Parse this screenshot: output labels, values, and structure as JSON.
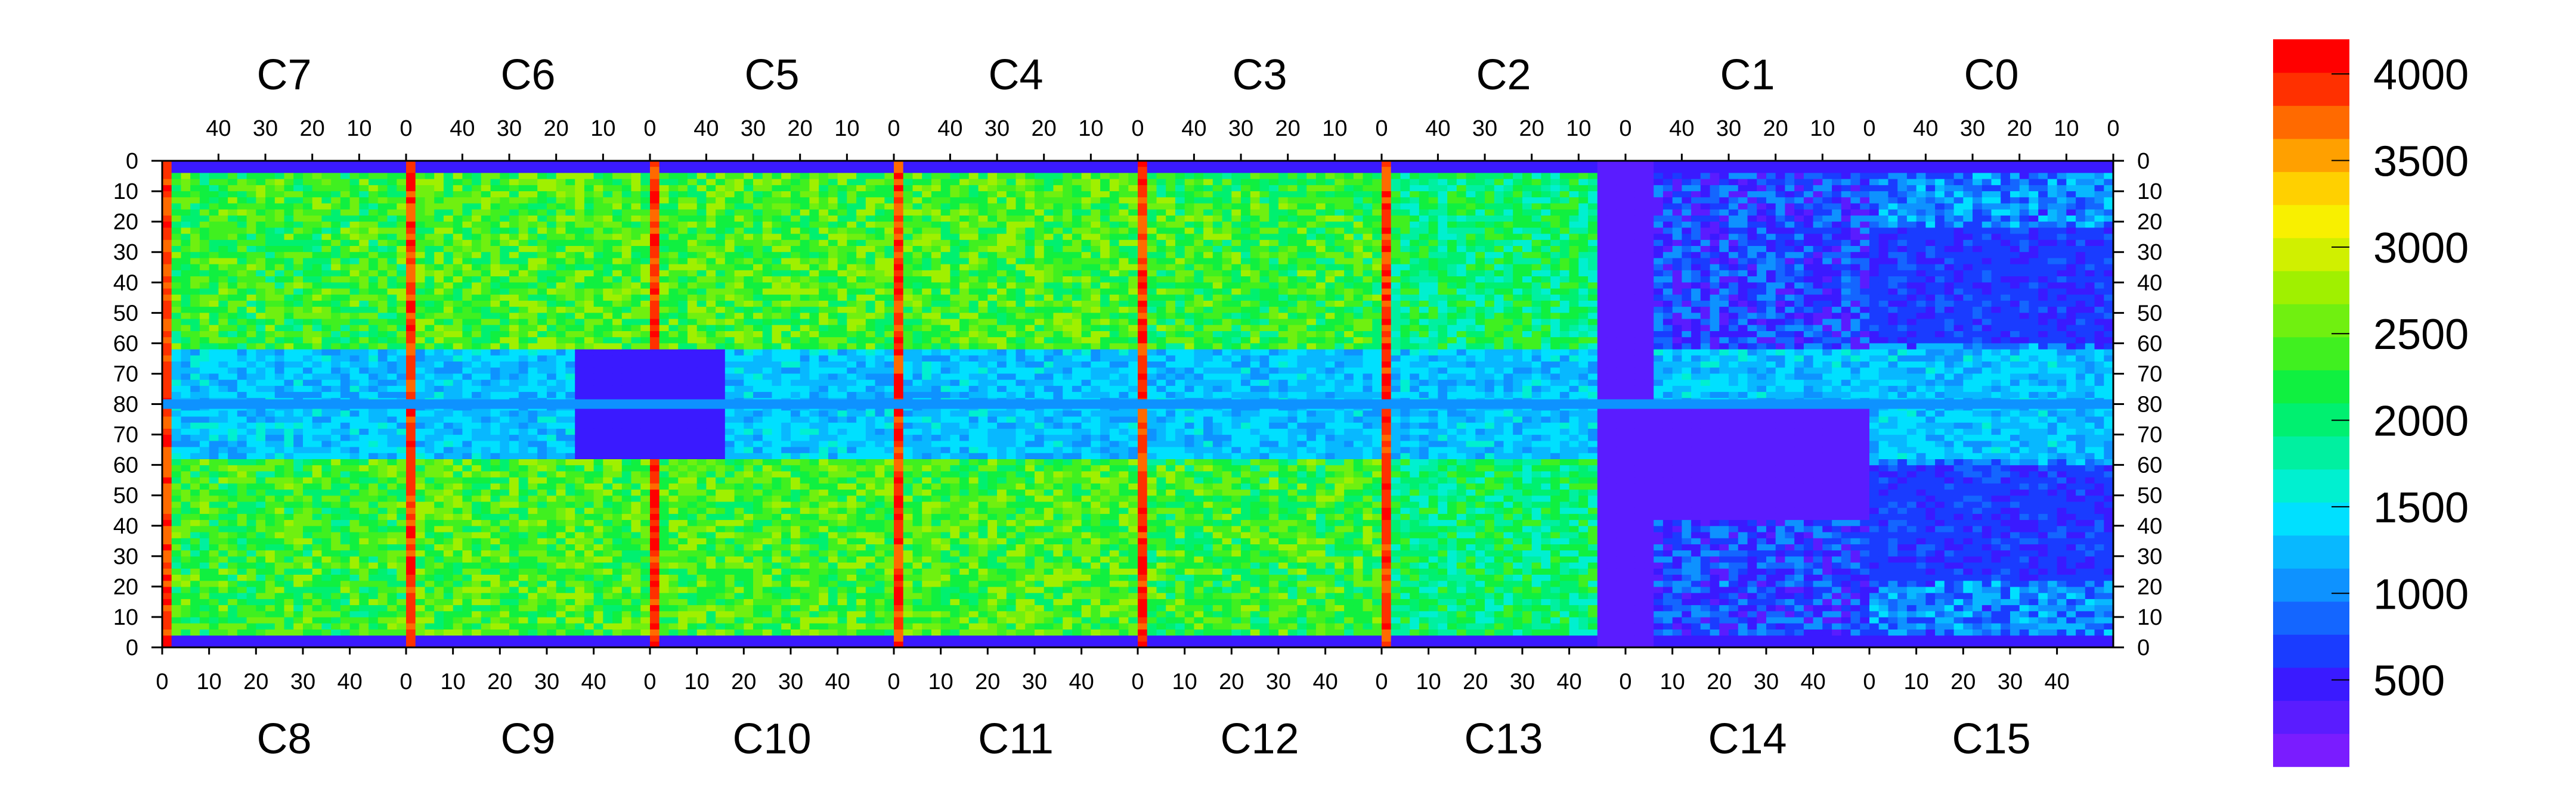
{
  "chart_data": {
    "type": "heatmap",
    "title": "",
    "xlabel": "",
    "ylabel": "",
    "chips": {
      "top": [
        "C7",
        "C6",
        "C5",
        "C4",
        "C3",
        "C2",
        "C1",
        "C0"
      ],
      "bottom": [
        "C8",
        "C9",
        "C10",
        "C11",
        "C12",
        "C13",
        "C14",
        "C15"
      ]
    },
    "x_ticks_top": [
      "40",
      "30",
      "20",
      "10",
      "0"
    ],
    "x_ticks_bottom": [
      "0",
      "10",
      "20",
      "30",
      "40"
    ],
    "y_ticks": [
      "0",
      "10",
      "20",
      "30",
      "40",
      "50",
      "60",
      "70",
      "80",
      "70",
      "60",
      "50",
      "40",
      "30",
      "20",
      "10",
      "0"
    ],
    "columns_per_chip": 52,
    "rows_per_half": 80,
    "zlim": [
      0,
      4200
    ],
    "palette": {
      "tick_values": [
        4000,
        3500,
        3000,
        2500,
        2000,
        1500,
        1000,
        500
      ],
      "tick_labels": [
        "4000",
        "3500",
        "3000",
        "2500",
        "2000",
        "1500",
        "1000",
        "500"
      ],
      "colors": [
        "#7a1cff",
        "#5a1cff",
        "#3a1aff",
        "#1a3cff",
        "#1466ff",
        "#0e92ff",
        "#08b8ff",
        "#00e0ff",
        "#00f0d0",
        "#00f0a0",
        "#00f070",
        "#10f040",
        "#40f020",
        "#70f010",
        "#a0f000",
        "#d0f000",
        "#f8f000",
        "#ffd000",
        "#ffa000",
        "#ff6a00",
        "#ff3000",
        "#ff0000"
      ]
    }
  }
}
